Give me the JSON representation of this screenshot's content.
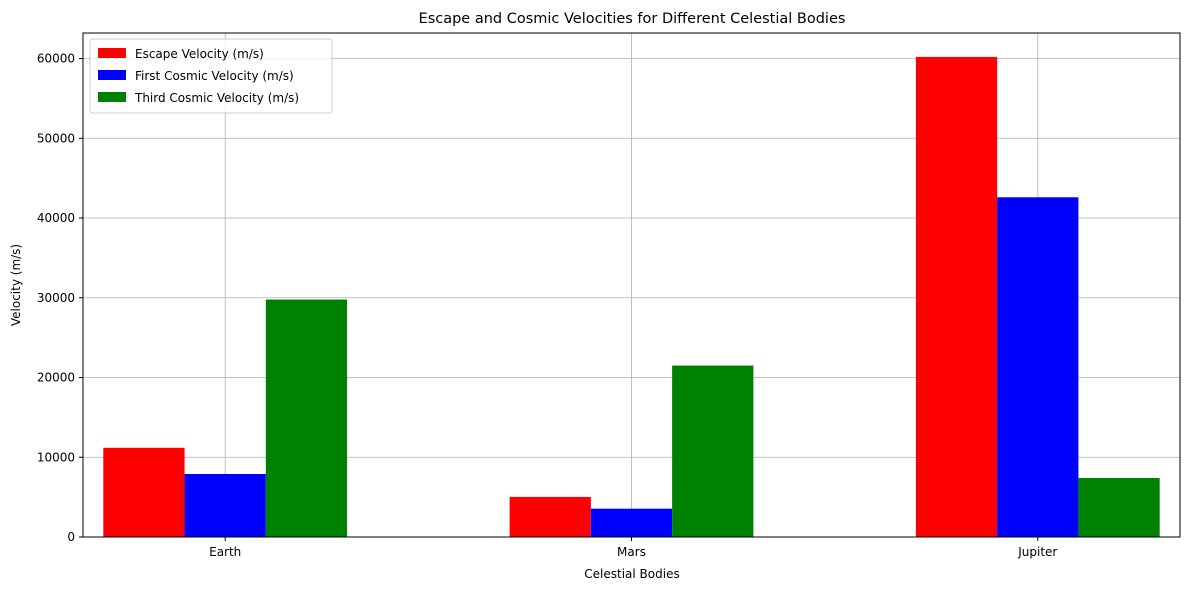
{
  "chart_data": {
    "type": "bar",
    "title": "Escape and Cosmic Velocities for Different Celestial Bodies",
    "xlabel": "Celestial Bodies",
    "ylabel": "Velocity (m/s)",
    "categories": [
      "Earth",
      "Mars",
      "Jupiter"
    ],
    "series": [
      {
        "name": "Escape Velocity (m/s)",
        "color": "#ff0000",
        "values": [
          11186,
          5027,
          60200
        ]
      },
      {
        "name": "First Cosmic Velocity (m/s)",
        "color": "#0000ff",
        "values": [
          7900,
          3550,
          42600
        ]
      },
      {
        "name": "Third Cosmic Velocity (m/s)",
        "color": "#008000",
        "values": [
          29780,
          21500,
          7400
        ]
      }
    ],
    "ylim": [
      0,
      63200
    ],
    "yticks": [
      0,
      10000,
      20000,
      30000,
      40000,
      50000,
      60000
    ],
    "grid": true,
    "legend_position": "top-left"
  }
}
